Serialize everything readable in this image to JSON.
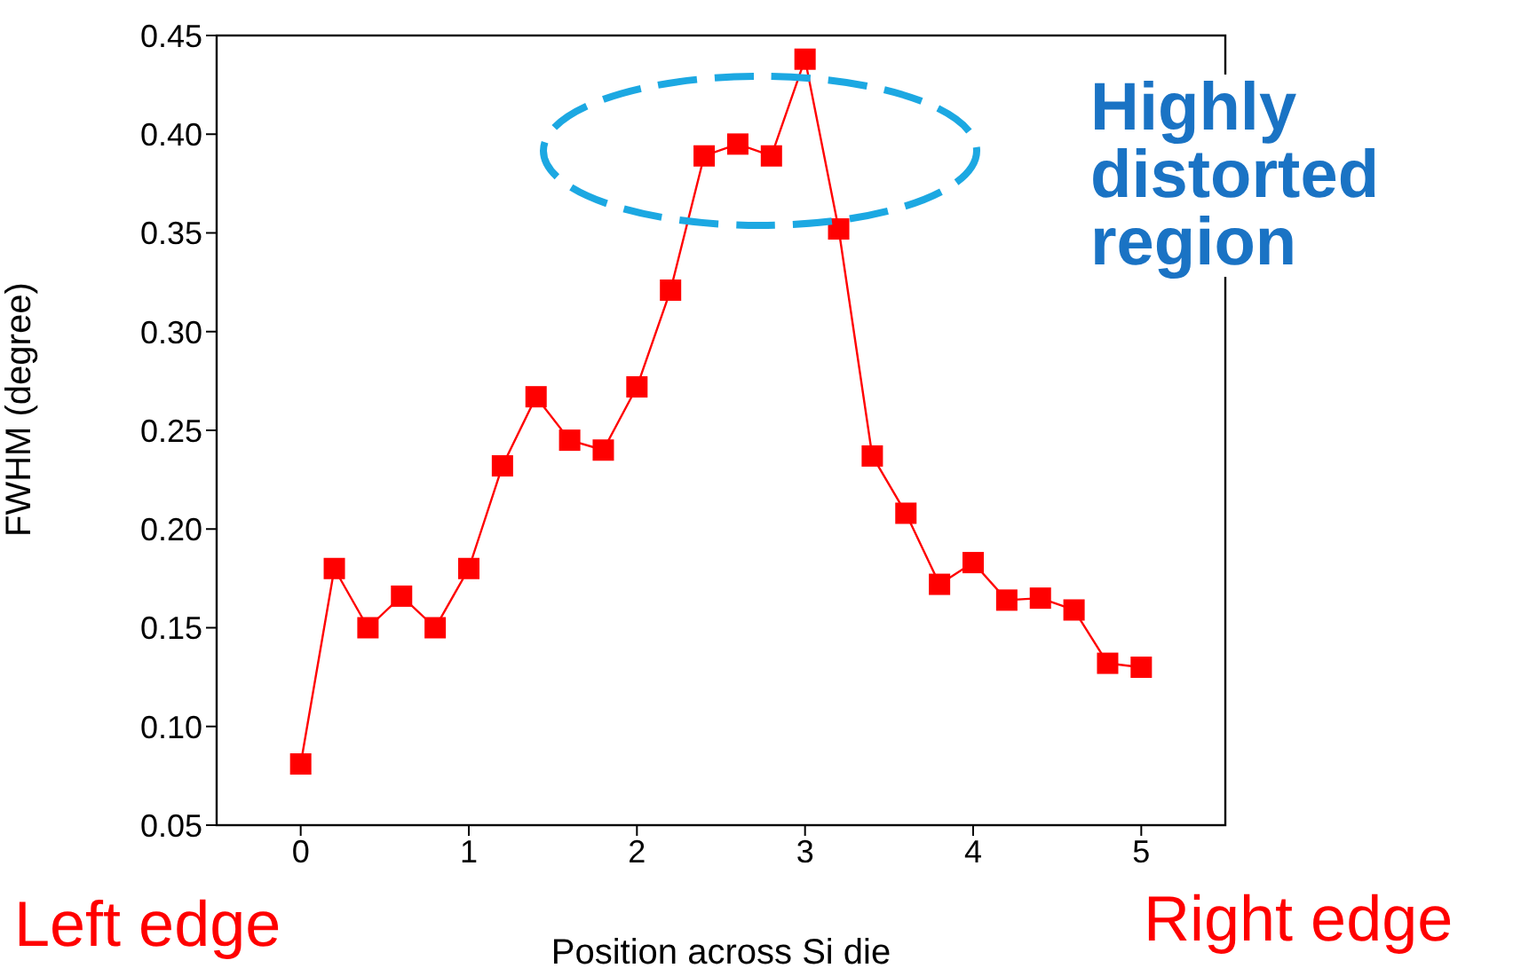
{
  "chart_data": {
    "type": "line",
    "xlabel": "Position across Si die",
    "ylabel": "FWHM (degree)",
    "x": [
      0,
      0.2,
      0.4,
      0.6,
      0.8,
      1.0,
      1.2,
      1.4,
      1.6,
      1.8,
      2.0,
      2.2,
      2.4,
      2.6,
      2.8,
      3.0,
      3.2,
      3.4,
      3.6,
      3.8,
      4.0,
      4.2,
      4.4,
      4.6,
      4.8,
      5.0
    ],
    "series": [
      {
        "color": "#ff0000",
        "values": [
          0.081,
          0.18,
          0.15,
          0.166,
          0.15,
          0.18,
          0.232,
          0.267,
          0.245,
          0.24,
          0.272,
          0.321,
          0.389,
          0.395,
          0.389,
          0.438,
          0.352,
          0.237,
          0.208,
          0.172,
          0.183,
          0.164,
          0.165,
          0.159,
          0.132,
          0.13
        ]
      }
    ],
    "xlim": [
      -0.5,
      5.5
    ],
    "xticks": [
      0,
      1,
      2,
      3,
      4,
      5
    ],
    "ylim": [
      0.05,
      0.45
    ],
    "yticks": [
      0.05,
      {
        "value": 0.1,
        "label": "0.10"
      },
      0.15,
      {
        "value": 0.2,
        "label": "0.20"
      },
      0.25,
      {
        "value": 0.3,
        "label": "0.30"
      },
      0.35,
      {
        "value": 0.4,
        "label": "0.40"
      },
      0.45
    ],
    "marker": "square",
    "line_style": "solid",
    "grid": false,
    "annotations": [
      "Highly distorted region",
      "Left edge",
      "Right edge"
    ]
  }
}
